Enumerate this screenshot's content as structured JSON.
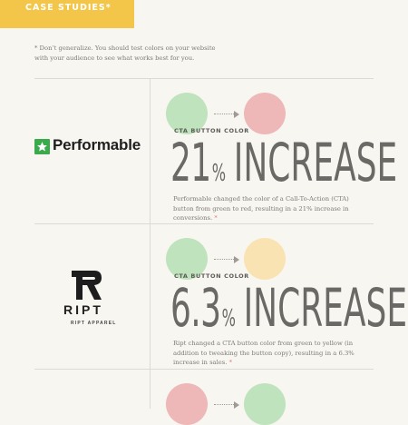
{
  "header": {
    "tab_label": "CASE STUDIES*"
  },
  "footnote": {
    "line1": "* Don’t generalize. You should test colors on your website",
    "line2": "with your audience to see what works best for you."
  },
  "colors": {
    "tab": "#f3c64a",
    "green": "#bfe3bd",
    "red": "#eeb7b8",
    "yellow": "#fae3b2",
    "star": "#e3797c"
  },
  "case_studies": [
    {
      "brand": "Performable",
      "logo_icon": "star-icon",
      "from_color": "green",
      "to_color": "red",
      "cta_label": "CTA BUTTON COLOR",
      "number": "21",
      "percent_sign": "%",
      "word": "INCREASE",
      "description": "Performable changed the color of a Call-To-Action (CTA) button from green to red, resulting in a 21% increase in conversions.",
      "note_mark": "*"
    },
    {
      "brand": "RIPT",
      "brand_sub": "RIPT APPAREL",
      "logo_icon": "ript-monogram-icon",
      "from_color": "green",
      "to_color": "yellow",
      "cta_label": "CTA BUTTON COLOR",
      "number": "6.3",
      "percent_sign": "%",
      "word": "INCREASE",
      "description": "Ript changed a CTA button color from green to yellow (in addition to tweaking the button copy), resulting in a 6.3% increase in sales.",
      "note_mark": "*"
    },
    {
      "from_color": "red",
      "to_color": "green"
    }
  ]
}
